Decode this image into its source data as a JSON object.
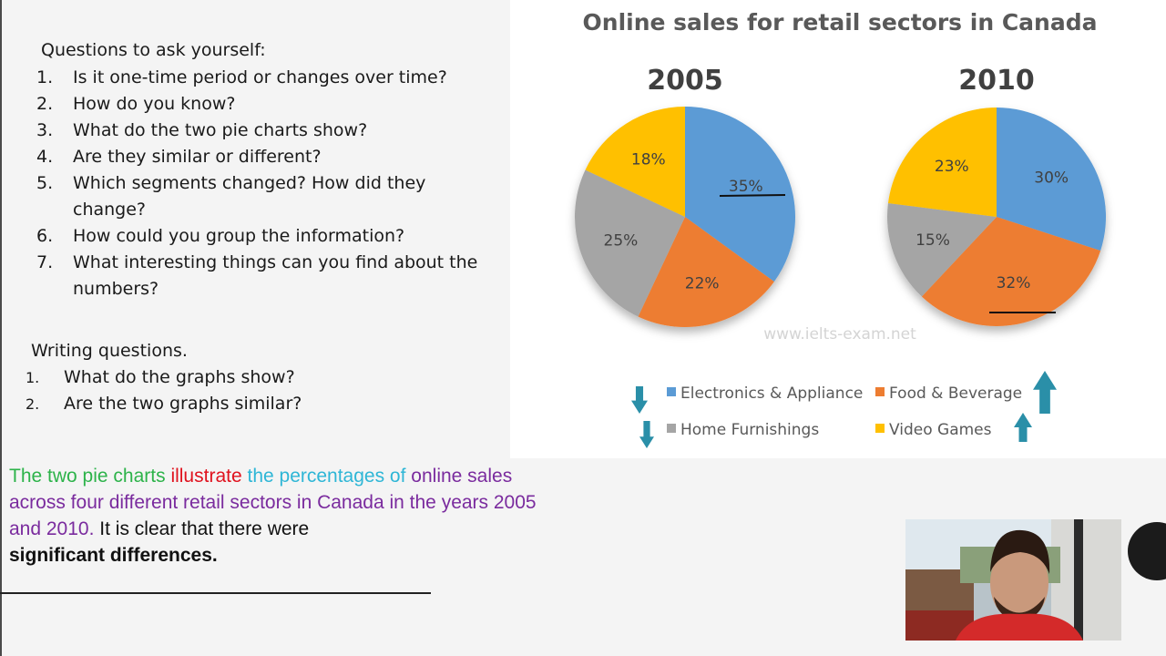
{
  "questions": {
    "heading": "Questions to ask yourself:",
    "items": [
      {
        "num": "1.",
        "text": "Is it one-time period or changes over time?"
      },
      {
        "num": "2.",
        "text": "How do you know?"
      },
      {
        "num": "3.",
        "text": "What do the two pie charts show?"
      },
      {
        "num": "4.",
        "text": "Are they similar or different?"
      },
      {
        "num": "5.",
        "text": "Which segments changed? How did they change?"
      },
      {
        "num": "6.",
        "text": "How could you group the information?"
      },
      {
        "num": "7.",
        "text": "What interesting things can you find about the numbers?"
      }
    ]
  },
  "writing": {
    "heading": "Writing questions.",
    "items": [
      {
        "num": "1.",
        "text": "What do the graphs show?"
      },
      {
        "num": "2.",
        "text": "Are the two graphs similar?"
      }
    ]
  },
  "summary": {
    "part1": "The two pie charts",
    "part2": "illustrate",
    "part3": "the percentages of",
    "part4": "online sales across four different retail sectors in Canada in the years 2005 and 2010.",
    "part5": "It is clear that there were",
    "part6": "significant differences.",
    "colors": {
      "part1": "#2db34a",
      "part2": "#e0121e",
      "part3": "#2eb6d6",
      "part4": "#7a2b9e",
      "part5": "#111111",
      "part6": "#111111"
    }
  },
  "chart_data": {
    "type": "pie",
    "title": "Online sales for retail sectors in Canada",
    "watermark": "www.ielts-exam.net",
    "categories": [
      "Electronics & Appliance",
      "Food & Beverage",
      "Home Furnishings",
      "Video Games"
    ],
    "colors": [
      "#5b9bd5",
      "#ed7d31",
      "#a5a5a5",
      "#ffc000"
    ],
    "series": [
      {
        "name": "2005",
        "values": [
          35,
          22,
          25,
          18
        ],
        "labels": [
          "35%",
          "22%",
          "25%",
          "18%"
        ]
      },
      {
        "name": "2010",
        "values": [
          30,
          32,
          15,
          23
        ],
        "labels": [
          "30%",
          "32%",
          "15%",
          "23%"
        ]
      }
    ],
    "legend_position": "bottom",
    "annotations": [
      {
        "target": "2005 Electronics & Appliance label",
        "mark": "underline"
      },
      {
        "target": "2010 Food & Beverage label",
        "mark": "underline"
      },
      {
        "target": "Electronics & Appliance legend",
        "mark": "down-arrow"
      },
      {
        "target": "Home Furnishings legend",
        "mark": "down-arrow"
      },
      {
        "target": "Food & Beverage legend",
        "mark": "up-arrow"
      },
      {
        "target": "Video Games legend",
        "mark": "up-arrow"
      }
    ],
    "arrow_color": "#2a8fa8",
    "annotation_color": "#111111"
  }
}
